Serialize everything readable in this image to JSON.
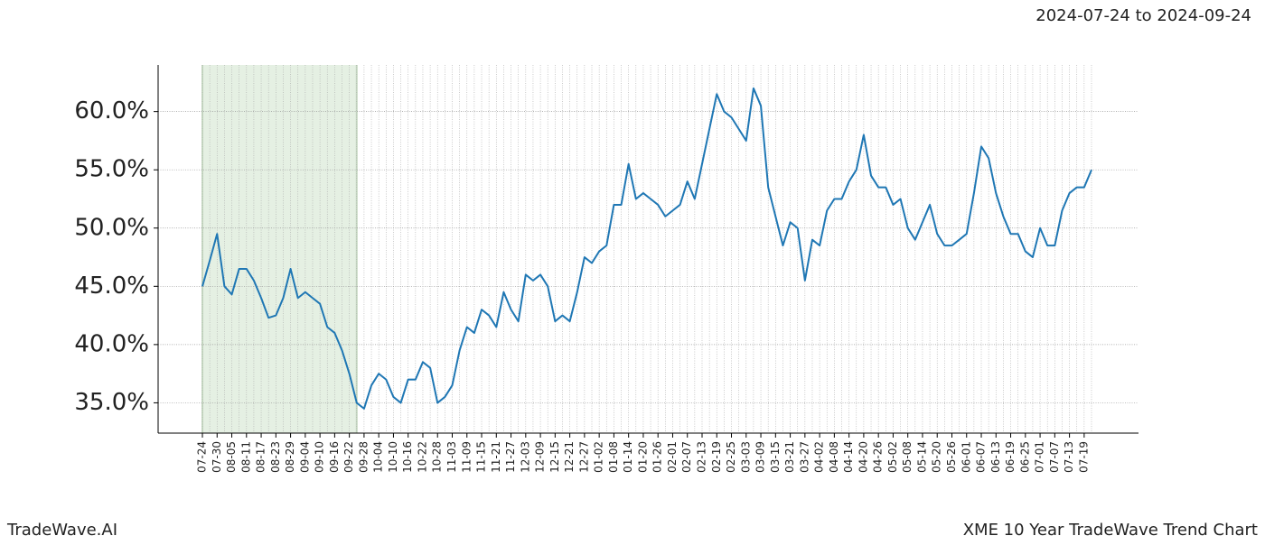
{
  "chart_data": {
    "type": "line",
    "title": "XME 10 Year TradeWave Trend Chart",
    "subtitle": "2024-07-24 to 2024-09-24",
    "brand": "TradeWave.AI",
    "categories": [
      "07-24",
      null,
      "07-30",
      null,
      "08-05",
      null,
      "08-11",
      null,
      "08-17",
      null,
      "08-23",
      null,
      "08-29",
      null,
      "09-04",
      null,
      "09-10",
      null,
      "09-16",
      null,
      "09-22",
      null,
      "09-28",
      null,
      "10-04",
      null,
      "10-10",
      null,
      "10-16",
      null,
      "10-22",
      null,
      "10-28",
      null,
      "11-03",
      null,
      "11-09",
      null,
      "11-15",
      null,
      "11-21",
      null,
      "11-27",
      null,
      "12-03",
      null,
      "12-09",
      null,
      "12-15",
      null,
      "12-21",
      null,
      "12-27",
      null,
      "01-02",
      null,
      "01-08",
      null,
      "01-14",
      null,
      "01-20",
      null,
      "01-26",
      null,
      "02-01",
      null,
      "02-07",
      null,
      "02-13",
      null,
      "02-19",
      null,
      "02-25",
      null,
      "03-03",
      null,
      "03-09",
      null,
      "03-15",
      null,
      "03-21",
      null,
      "03-27",
      null,
      "04-02",
      null,
      "04-08",
      null,
      "04-14",
      null,
      "04-20",
      null,
      "04-26",
      null,
      "05-02",
      null,
      "05-08",
      null,
      "05-14",
      null,
      "05-20",
      null,
      "05-26",
      null,
      "06-01",
      null,
      "06-07",
      null,
      "06-13",
      null,
      "06-19",
      null,
      "06-25",
      null,
      "07-01",
      null,
      "07-07",
      null,
      "07-13",
      null,
      "07-19",
      null
    ],
    "series": [
      {
        "color": "#1f77b4",
        "values": [
          45.0,
          47.2,
          49.5,
          45.0,
          44.3,
          46.5,
          46.5,
          45.5,
          44.0,
          42.3,
          42.5,
          44.0,
          46.5,
          44.0,
          44.5,
          44.0,
          43.5,
          41.5,
          41.0,
          39.5,
          37.5,
          35.0,
          34.5,
          36.5,
          37.5,
          37.0,
          35.5,
          35.0,
          37.0,
          37.0,
          38.5,
          38.0,
          35.0,
          35.5,
          36.5,
          39.5,
          41.5,
          41.0,
          43.0,
          42.5,
          41.5,
          44.5,
          43.0,
          42.0,
          46.0,
          45.5,
          46.0,
          45.0,
          42.0,
          42.5,
          42.0,
          44.5,
          47.5,
          47.0,
          48.0,
          48.5,
          52.0,
          52.0,
          55.5,
          52.5,
          53.0,
          52.5,
          52.0,
          51.0,
          51.5,
          52.0,
          54.0,
          52.5,
          55.5,
          58.5,
          61.5,
          60.0,
          59.5,
          58.5,
          57.5,
          62.0,
          60.5,
          53.5,
          51.0,
          48.5,
          50.5,
          50.0,
          45.5,
          49.0,
          48.5,
          51.5,
          52.5,
          52.5,
          54.0,
          55.0,
          58.0,
          54.5,
          53.5,
          53.5,
          52.0,
          52.5,
          50.0,
          49.0,
          50.5,
          52.0,
          49.5,
          48.5,
          48.5,
          49.0,
          49.5,
          53.0,
          57.0,
          56.0,
          53.0,
          51.0,
          49.5,
          49.5,
          48.0,
          47.5,
          50.0,
          48.5,
          48.5,
          51.5,
          53.0,
          53.5,
          53.5,
          55.0
        ]
      }
    ],
    "ylim": [
      32.4,
      64.0
    ],
    "yticks": [
      {
        "value": 35,
        "label": "35.0%"
      },
      {
        "value": 40,
        "label": "40.0%"
      },
      {
        "value": 45,
        "label": "45.0%"
      },
      {
        "value": 50,
        "label": "50.0%"
      },
      {
        "value": 55,
        "label": "55.0%"
      },
      {
        "value": 60,
        "label": "60.0%"
      }
    ],
    "shade": [
      0,
      21
    ],
    "shade_color": "#e5f0e3",
    "grid": true
  }
}
